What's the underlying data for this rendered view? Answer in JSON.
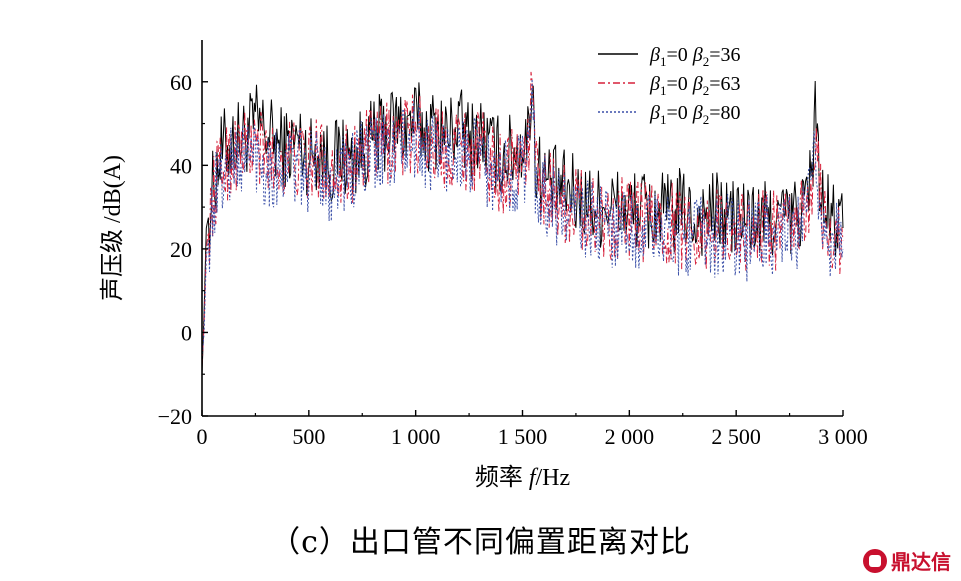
{
  "chart_data": {
    "type": "line",
    "xlabel_prefix": "频率 ",
    "xlabel_var": "f",
    "xlabel_unit": "/Hz",
    "ylabel": "声压级 /dB(A)",
    "xlim": [
      0,
      3000
    ],
    "ylim": [
      -20,
      70
    ],
    "x_ticks": [
      0,
      500,
      1000,
      1500,
      2000,
      2500,
      3000
    ],
    "x_tick_labels": [
      "0",
      "500",
      "1 000",
      "1 500",
      "2 000",
      "2 500",
      "3 000"
    ],
    "y_ticks": [
      -20,
      0,
      20,
      40,
      60
    ],
    "y_tick_labels": [
      "−20",
      "0",
      "20",
      "40",
      "60"
    ],
    "grid": false,
    "legend_position": "top-right",
    "series": [
      {
        "name_parts": [
          "β",
          "1",
          "=0  ",
          "β",
          "2",
          "=36"
        ],
        "color": "#000000",
        "dash": "",
        "x": [
          0,
          10,
          20,
          40,
          60,
          100,
          150,
          200,
          250,
          300,
          350,
          400,
          450,
          500,
          550,
          600,
          650,
          700,
          750,
          800,
          850,
          900,
          950,
          1000,
          1050,
          1100,
          1150,
          1200,
          1250,
          1300,
          1350,
          1400,
          1450,
          1500,
          1530,
          1545,
          1560,
          1600,
          1650,
          1700,
          1750,
          1800,
          1850,
          1900,
          1950,
          2000,
          2050,
          2100,
          2150,
          2200,
          2250,
          2300,
          2350,
          2400,
          2450,
          2500,
          2550,
          2600,
          2650,
          2700,
          2750,
          2800,
          2850,
          2870,
          2900,
          2950,
          3000
        ],
        "y": [
          -10,
          5,
          25,
          30,
          38,
          44,
          46,
          47,
          50,
          48,
          45,
          44,
          46,
          42,
          44,
          40,
          43,
          41,
          44,
          46,
          48,
          50,
          49,
          51,
          48,
          49,
          47,
          50,
          46,
          48,
          44,
          42,
          43,
          45,
          47,
          64,
          40,
          37,
          35,
          34,
          33,
          31,
          30,
          31,
          30,
          29,
          30,
          28,
          29,
          28,
          30,
          27,
          28,
          29,
          28,
          27,
          28,
          26,
          27,
          28,
          27,
          29,
          36,
          53,
          30,
          27,
          25
        ]
      },
      {
        "name_parts": [
          "β",
          "1",
          "=0  ",
          "β",
          "2",
          "=63"
        ],
        "color": "#d6203a",
        "dash": "7,3,2,3",
        "x": [
          0,
          10,
          20,
          40,
          60,
          100,
          150,
          200,
          250,
          300,
          350,
          400,
          450,
          500,
          550,
          600,
          650,
          700,
          750,
          800,
          850,
          900,
          950,
          1000,
          1050,
          1100,
          1150,
          1200,
          1250,
          1300,
          1350,
          1400,
          1450,
          1500,
          1530,
          1545,
          1560,
          1600,
          1650,
          1700,
          1750,
          1800,
          1850,
          1900,
          1950,
          2000,
          2050,
          2100,
          2150,
          2200,
          2250,
          2300,
          2350,
          2400,
          2450,
          2500,
          2550,
          2600,
          2650,
          2700,
          2750,
          2800,
          2850,
          2870,
          2900,
          2950,
          3000
        ],
        "y": [
          -8,
          2,
          20,
          28,
          35,
          40,
          43,
          44,
          45,
          42,
          40,
          43,
          41,
          40,
          42,
          38,
          41,
          40,
          43,
          44,
          45,
          46,
          47,
          48,
          46,
          45,
          44,
          46,
          43,
          44,
          40,
          38,
          40,
          42,
          44,
          64,
          38,
          35,
          33,
          31,
          30,
          29,
          28,
          27,
          28,
          27,
          26,
          27,
          25,
          26,
          25,
          26,
          24,
          25,
          26,
          25,
          24,
          25,
          26,
          24,
          25,
          26,
          33,
          47,
          28,
          24,
          22
        ]
      },
      {
        "name_parts": [
          "β",
          "1",
          "=0  ",
          "β",
          "2",
          "=80"
        ],
        "color": "#3a4fa8",
        "dash": "2,2",
        "x": [
          0,
          10,
          20,
          40,
          60,
          100,
          150,
          200,
          250,
          300,
          350,
          400,
          450,
          500,
          550,
          600,
          650,
          700,
          750,
          800,
          850,
          900,
          950,
          1000,
          1050,
          1100,
          1150,
          1200,
          1250,
          1300,
          1350,
          1400,
          1450,
          1500,
          1530,
          1545,
          1560,
          1600,
          1650,
          1700,
          1750,
          1800,
          1850,
          1900,
          1950,
          2000,
          2050,
          2100,
          2150,
          2200,
          2250,
          2300,
          2350,
          2400,
          2450,
          2500,
          2550,
          2600,
          2650,
          2700,
          2750,
          2800,
          2850,
          2870,
          2900,
          2950,
          3000
        ],
        "y": [
          -6,
          0,
          18,
          26,
          33,
          38,
          41,
          42,
          43,
          40,
          39,
          41,
          39,
          38,
          40,
          36,
          39,
          38,
          41,
          42,
          43,
          44,
          45,
          46,
          44,
          43,
          42,
          44,
          41,
          42,
          38,
          36,
          38,
          40,
          42,
          62,
          36,
          33,
          31,
          29,
          28,
          27,
          26,
          25,
          26,
          25,
          24,
          25,
          23,
          24,
          23,
          24,
          22,
          23,
          24,
          23,
          22,
          23,
          24,
          22,
          23,
          24,
          31,
          45,
          26,
          22,
          20
        ]
      }
    ]
  },
  "caption": "（c）出口管不同偏置距离对比",
  "watermark": "鼎达信"
}
